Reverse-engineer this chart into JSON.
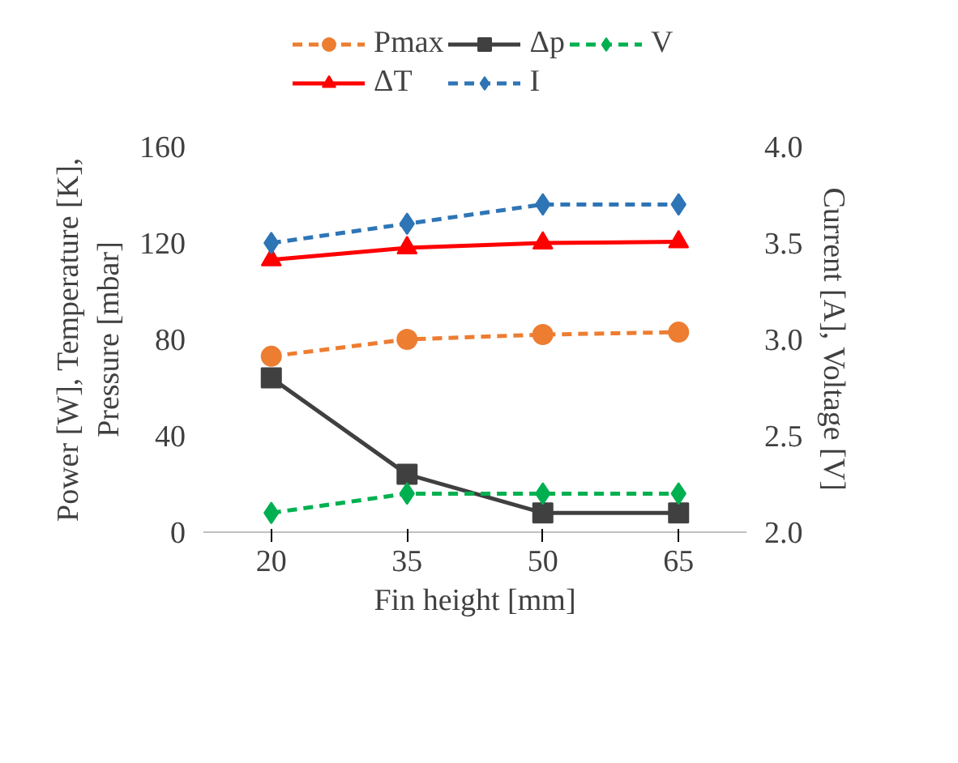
{
  "chart_data": {
    "type": "line",
    "xlabel": "Fin height [mm]",
    "ylabel": "Power [W], Temperature [K],\nPressure [mbar]",
    "y2label": "Current [A], Voltage [V]",
    "categories": [
      "20",
      "35",
      "50",
      "65"
    ],
    "ylim": [
      0,
      160
    ],
    "yticks": [
      0,
      40,
      80,
      120,
      160
    ],
    "y2lim": [
      2.0,
      4.0
    ],
    "y2ticks": [
      {
        "value": 2.0,
        "label": "2.0"
      },
      {
        "value": 2.5,
        "label": "2.5"
      },
      {
        "value": 3.0,
        "label": "3.0"
      },
      {
        "value": 3.5,
        "label": "3.5"
      },
      {
        "value": 4.0,
        "label": "4.0"
      }
    ],
    "legend": "top",
    "grid": false,
    "series": [
      {
        "name": "Pmax",
        "color": "#ed7d31",
        "values": [
          73,
          80,
          82,
          83
        ],
        "marker": "circle",
        "line_style": "dashed"
      },
      {
        "name": "ΔT",
        "color": "#ff0000",
        "values": [
          113,
          118,
          120,
          120.5
        ],
        "marker": "triangle",
        "line_style": "solid"
      },
      {
        "name": "Δp",
        "color": "#404040",
        "values": [
          64,
          24,
          8,
          8
        ],
        "marker": "square",
        "line_style": "solid"
      },
      {
        "name": "I",
        "color": "#2e75b6",
        "values": [
          3.5,
          3.6,
          3.7,
          3.7
        ],
        "marker": "diamond",
        "line_style": "dashed",
        "axis": "y2"
      },
      {
        "name": "V",
        "color": "#00b050",
        "values": [
          2.1,
          2.2,
          2.2,
          2.2
        ],
        "marker": "diamond",
        "line_style": "dashed",
        "axis": "y2"
      }
    ]
  }
}
